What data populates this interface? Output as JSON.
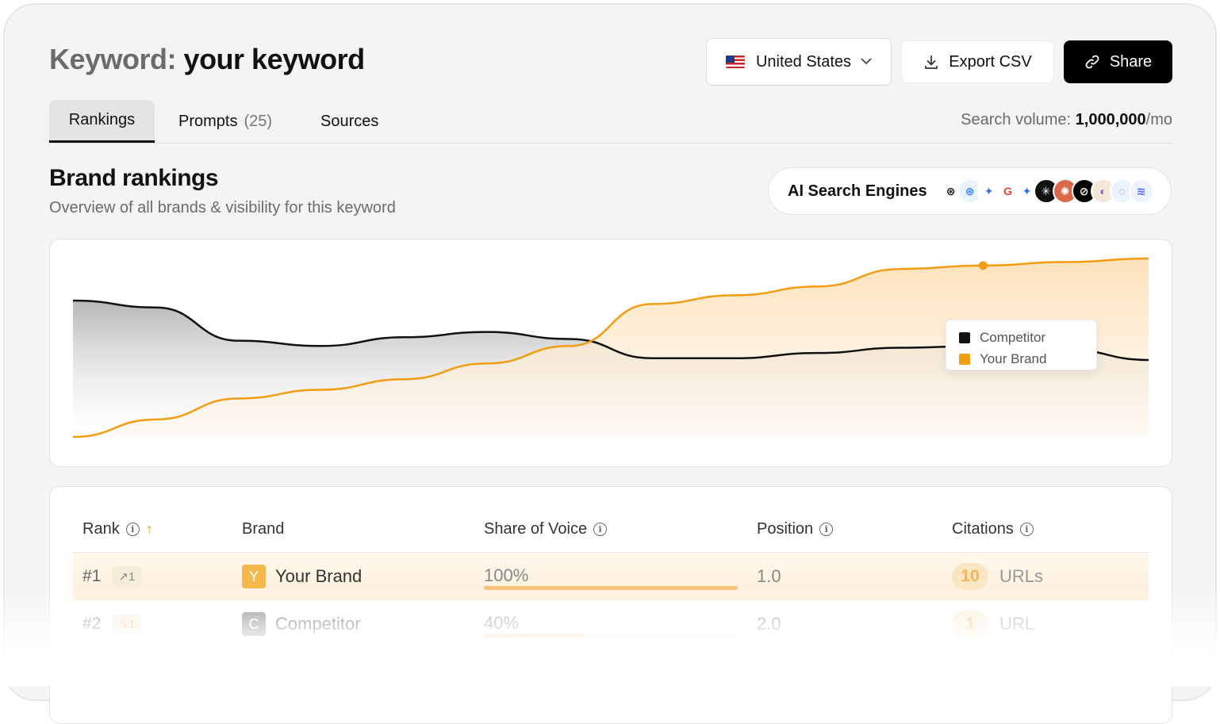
{
  "header": {
    "title_label": "Keyword:",
    "keyword": "your keyword",
    "country": "United States",
    "export_label": "Export CSV",
    "share_label": "Share"
  },
  "tabs": [
    {
      "label": "Rankings",
      "active": true
    },
    {
      "label": "Prompts",
      "count": "(25)"
    },
    {
      "label": "Sources"
    }
  ],
  "search_volume": {
    "label": "Search volume:",
    "value": "1,000,000",
    "unit": "/mo"
  },
  "section": {
    "title": "Brand rankings",
    "subtitle": "Overview of all brands & visibility for this keyword"
  },
  "engines": {
    "label": "AI Search Engines",
    "icons": [
      {
        "name": "chatgpt-icon",
        "bg": "#ffffff",
        "fg": "#111111",
        "glyph": "⊛"
      },
      {
        "name": "openai-blue-icon",
        "bg": "#eaf2ff",
        "fg": "#3b82f6",
        "glyph": "⊛"
      },
      {
        "name": "gemini-icon",
        "bg": "#ffffff",
        "fg": "#3b6fe0",
        "glyph": "✦"
      },
      {
        "name": "google-icon",
        "bg": "#ffffff",
        "fg": "#ea4335",
        "glyph": "G"
      },
      {
        "name": "gemini-alt-icon",
        "bg": "#ffffff",
        "fg": "#2f6fe4",
        "glyph": "✦"
      },
      {
        "name": "perplexity-icon",
        "bg": "#111111",
        "fg": "#ffffff",
        "glyph": "✳"
      },
      {
        "name": "claude-icon",
        "bg": "#d9694a",
        "fg": "#ffffff",
        "glyph": "✺"
      },
      {
        "name": "grok-icon",
        "bg": "#000000",
        "fg": "#ffffff",
        "glyph": "⊘"
      },
      {
        "name": "copilot-icon",
        "bg": "#f5e6d8",
        "fg": "#7b5cd6",
        "glyph": "◐"
      },
      {
        "name": "meta-ai-icon",
        "bg": "#eaf3ff",
        "fg": "#2b7de9",
        "glyph": "◌"
      },
      {
        "name": "deepseek-icon",
        "bg": "#eef3ff",
        "fg": "#4d6bfe",
        "glyph": "≋"
      }
    ]
  },
  "chart_data": {
    "type": "area",
    "title": "",
    "xlabel": "",
    "ylabel": "",
    "ylim": [
      0,
      100
    ],
    "grid": false,
    "legend_position": "right",
    "x": [
      0,
      1,
      2,
      3,
      4,
      5,
      6,
      7,
      8,
      9,
      10,
      11,
      12,
      13
    ],
    "series": [
      {
        "name": "Competitor",
        "color": "#111111",
        "values": [
          78,
          74,
          55,
          52,
          57,
          60,
          56,
          45,
          45,
          48,
          51,
          52,
          50,
          44
        ]
      },
      {
        "name": "Your Brand",
        "color": "#f39c12",
        "values": [
          0,
          10,
          22,
          27,
          33,
          42,
          52,
          76,
          81,
          86,
          96,
          98,
          100,
          102
        ]
      }
    ],
    "highlight_index": 11
  },
  "table": {
    "columns": [
      {
        "key": "rank",
        "label": "Rank",
        "info": true,
        "sorted": true
      },
      {
        "key": "brand",
        "label": "Brand"
      },
      {
        "key": "sov",
        "label": "Share of Voice",
        "info": true
      },
      {
        "key": "position",
        "label": "Position",
        "info": true
      },
      {
        "key": "citations",
        "label": "Citations",
        "info": true
      }
    ],
    "rows": [
      {
        "rank": "#1",
        "delta": "1",
        "trend": "up",
        "badge": "Y",
        "badge_color": "#f5b74a",
        "brand": "Your Brand",
        "sov": "100%",
        "sov_fraction": 1.0,
        "position": "1.0",
        "citations": "10",
        "citations_unit": "URLs"
      },
      {
        "rank": "#2",
        "delta": "1",
        "trend": "down",
        "badge": "C",
        "badge_color": "#8a8a8a",
        "brand": "Competitor",
        "sov": "40%",
        "sov_fraction": 0.4,
        "position": "2.0",
        "citations": "1",
        "citations_unit": "URL"
      }
    ]
  }
}
